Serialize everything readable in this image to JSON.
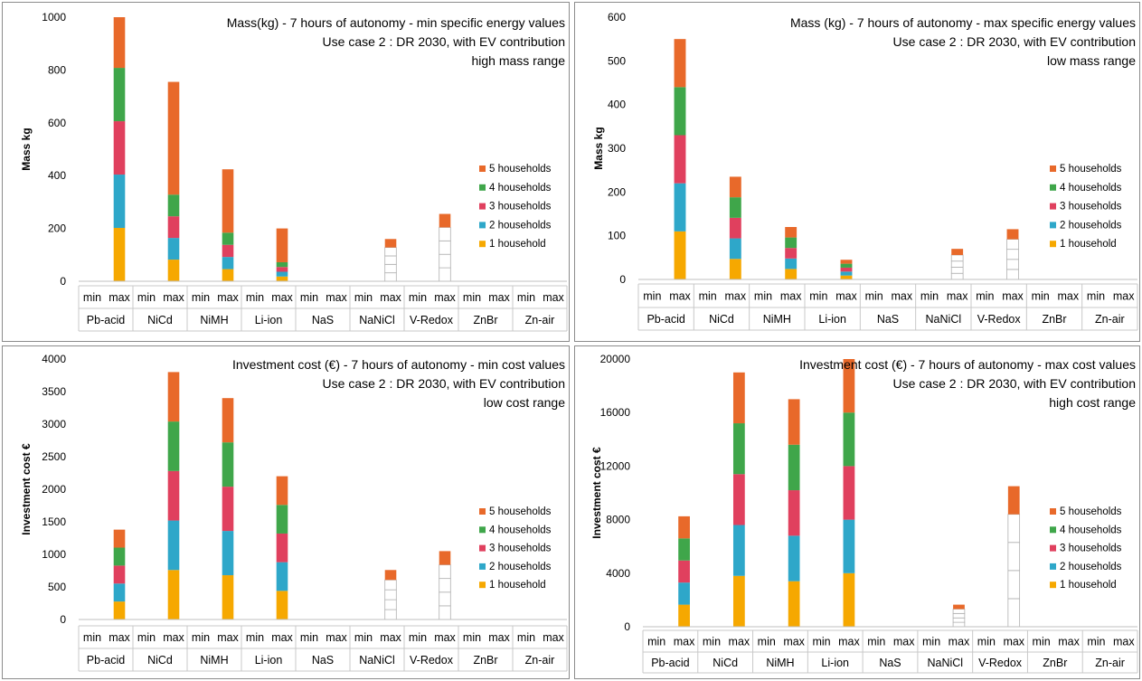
{
  "colors": {
    "1 household": "#f6a800",
    "2 households": "#2ea7c9",
    "3 households": "#e0405e",
    "4 households": "#3fa64a",
    "5 households": "#e8692a",
    "axis": "#bfbfbf",
    "table": "#c8c8c8",
    "text": "#000000"
  },
  "chart_data": [
    {
      "type": "bar",
      "stacked": true,
      "title": "Mass(kg) - 7 hours of autonomy - min specific energy values",
      "subtitle": "Use case  2 : DR 2030, with EV contribution",
      "range_label": "high mass range",
      "ylabel": "Mass kg",
      "ylim": [
        0,
        1000
      ],
      "yticks": [
        "0",
        "200",
        "400",
        "600",
        "800",
        "1000"
      ],
      "legend_position": "right",
      "groups": [
        "Pb-acid",
        "NiCd",
        "NiMH",
        "Li-ion",
        "NaS",
        "NaNiCl",
        "V-Redox",
        "ZnBr",
        "Zn-air"
      ],
      "subcategories": [
        "min",
        "max"
      ],
      "series": [
        {
          "name": "1 household",
          "values": [
            0,
            202,
            0,
            82,
            0,
            46,
            0,
            18,
            0,
            0,
            0,
            32,
            0,
            51,
            0,
            0,
            0,
            0
          ]
        },
        {
          "name": "2 households",
          "values": [
            0,
            202,
            0,
            82,
            0,
            46,
            0,
            18,
            0,
            0,
            0,
            32,
            0,
            51,
            0,
            0,
            0,
            0
          ]
        },
        {
          "name": "3 households",
          "values": [
            0,
            202,
            0,
            82,
            0,
            46,
            0,
            18,
            0,
            0,
            0,
            32,
            0,
            51,
            0,
            0,
            0,
            0
          ]
        },
        {
          "name": "4 households",
          "values": [
            0,
            202,
            0,
            82,
            0,
            46,
            0,
            18,
            0,
            0,
            0,
            32,
            0,
            51,
            0,
            0,
            0,
            0
          ]
        },
        {
          "name": "5 households",
          "values": [
            0,
            192,
            0,
            427,
            0,
            240,
            0,
            128,
            0,
            0,
            0,
            32,
            0,
            51,
            0,
            0,
            0,
            0
          ]
        }
      ],
      "unfilled_groups": [
        "NaNiCl",
        "V-Redox"
      ]
    },
    {
      "type": "bar",
      "stacked": true,
      "title": "Mass (kg) - 7 hours of autonomy - max specific energy values",
      "subtitle": "Use case  2 : DR 2030, with EV contribution",
      "range_label": "low mass range",
      "ylabel": "Mass kg",
      "ylim": [
        0,
        600
      ],
      "yticks": [
        "0",
        "100",
        "200",
        "300",
        "400",
        "500",
        "600"
      ],
      "legend_position": "right",
      "groups": [
        "Pb-acid",
        "NiCd",
        "NiMH",
        "Li-ion",
        "NaS",
        "NaNiCl",
        "V-Redox",
        "ZnBr",
        "Zn-air"
      ],
      "subcategories": [
        "min",
        "max"
      ],
      "series": [
        {
          "name": "1 household",
          "values": [
            0,
            110,
            0,
            47,
            0,
            24,
            0,
            9,
            0,
            0,
            0,
            14,
            0,
            23,
            0,
            0,
            0,
            0
          ]
        },
        {
          "name": "2 households",
          "values": [
            0,
            110,
            0,
            47,
            0,
            24,
            0,
            9,
            0,
            0,
            0,
            14,
            0,
            23,
            0,
            0,
            0,
            0
          ]
        },
        {
          "name": "3 households",
          "values": [
            0,
            110,
            0,
            47,
            0,
            24,
            0,
            9,
            0,
            0,
            0,
            14,
            0,
            23,
            0,
            0,
            0,
            0
          ]
        },
        {
          "name": "4 households",
          "values": [
            0,
            110,
            0,
            47,
            0,
            24,
            0,
            9,
            0,
            0,
            0,
            14,
            0,
            23,
            0,
            0,
            0,
            0
          ]
        },
        {
          "name": "5 households",
          "values": [
            0,
            110,
            0,
            47,
            0,
            24,
            0,
            9,
            0,
            0,
            0,
            14,
            0,
            23,
            0,
            0,
            0,
            0
          ]
        }
      ],
      "unfilled_groups": [
        "NaNiCl",
        "V-Redox"
      ]
    },
    {
      "type": "bar",
      "stacked": true,
      "title": "Investment cost (€) - 7 hours of autonomy - min cost values",
      "subtitle": "Use case  2 : DR 2030, with EV contribution",
      "range_label": "low cost range",
      "ylabel": "Investment cost €",
      "ylim": [
        0,
        4000
      ],
      "yticks": [
        "0",
        "500",
        "1000",
        "1500",
        "2000",
        "2500",
        "3000",
        "3500",
        "4000"
      ],
      "legend_position": "right",
      "groups": [
        "Pb-acid",
        "NiCd",
        "NiMH",
        "Li-ion",
        "NaS",
        "NaNiCl",
        "V-Redox",
        "ZnBr",
        "Zn-air"
      ],
      "subcategories": [
        "min",
        "max"
      ],
      "series": [
        {
          "name": "1 household",
          "values": [
            0,
            276,
            0,
            760,
            0,
            680,
            0,
            440,
            0,
            0,
            0,
            152,
            0,
            210,
            0,
            0,
            0,
            0
          ]
        },
        {
          "name": "2 households",
          "values": [
            0,
            276,
            0,
            760,
            0,
            680,
            0,
            440,
            0,
            0,
            0,
            152,
            0,
            210,
            0,
            0,
            0,
            0
          ]
        },
        {
          "name": "3 households",
          "values": [
            0,
            276,
            0,
            760,
            0,
            680,
            0,
            440,
            0,
            0,
            0,
            152,
            0,
            210,
            0,
            0,
            0,
            0
          ]
        },
        {
          "name": "4 households",
          "values": [
            0,
            276,
            0,
            760,
            0,
            680,
            0,
            440,
            0,
            0,
            0,
            152,
            0,
            210,
            0,
            0,
            0,
            0
          ]
        },
        {
          "name": "5 households",
          "values": [
            0,
            276,
            0,
            760,
            0,
            680,
            0,
            440,
            0,
            0,
            0,
            152,
            0,
            210,
            0,
            0,
            0,
            0
          ]
        }
      ],
      "unfilled_groups": [
        "NaNiCl",
        "V-Redox"
      ]
    },
    {
      "type": "bar",
      "stacked": true,
      "title": "Investment cost (€) - 7 hours of autonomy - max cost values",
      "subtitle": "Use case  2 : DR 2030, with EV contribution",
      "range_label": "high cost range",
      "ylabel": "Investment cost €",
      "ylim": [
        0,
        20000
      ],
      "yticks": [
        "0",
        "4000",
        "8000",
        "12000",
        "16000",
        "20000"
      ],
      "legend_position": "right",
      "groups": [
        "Pb-acid",
        "NiCd",
        "NiMH",
        "Li-ion",
        "NaS",
        "NaNiCl",
        "V-Redox",
        "ZnBr",
        "Zn-air"
      ],
      "subcategories": [
        "min",
        "max"
      ],
      "series": [
        {
          "name": "1 household",
          "values": [
            0,
            1650,
            0,
            3800,
            0,
            3400,
            0,
            4000,
            0,
            0,
            0,
            330,
            0,
            2100,
            0,
            0,
            0,
            0
          ]
        },
        {
          "name": "2 households",
          "values": [
            0,
            1650,
            0,
            3800,
            0,
            3400,
            0,
            4000,
            0,
            0,
            0,
            330,
            0,
            2100,
            0,
            0,
            0,
            0
          ]
        },
        {
          "name": "3 households",
          "values": [
            0,
            1650,
            0,
            3800,
            0,
            3400,
            0,
            4000,
            0,
            0,
            0,
            330,
            0,
            2100,
            0,
            0,
            0,
            0
          ]
        },
        {
          "name": "4 households",
          "values": [
            0,
            1650,
            0,
            3800,
            0,
            3400,
            0,
            4000,
            0,
            0,
            0,
            330,
            0,
            2100,
            0,
            0,
            0,
            0
          ]
        },
        {
          "name": "5 households",
          "values": [
            0,
            1650,
            0,
            3800,
            0,
            3400,
            0,
            4000,
            0,
            0,
            0,
            330,
            0,
            2100,
            0,
            0,
            0,
            0
          ]
        }
      ],
      "unfilled_groups": [
        "NaNiCl",
        "V-Redox"
      ]
    }
  ]
}
